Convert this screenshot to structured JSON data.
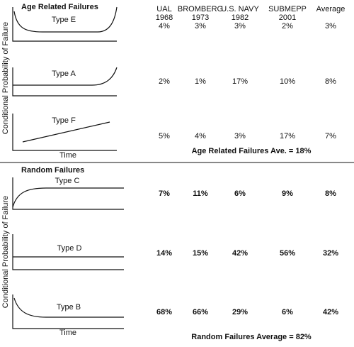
{
  "columns": [
    {
      "name": "UAL",
      "year": "1968"
    },
    {
      "name": "BROMBERG",
      "year": "1973"
    },
    {
      "name": "U.S. NAVY",
      "year": "1982"
    },
    {
      "name": "SUBMEPP",
      "year": "2001"
    },
    {
      "name": "Average"
    }
  ],
  "sections": [
    {
      "title": "Age Related Failures",
      "axis_label": "Conditional Probability of Failure",
      "time_label": "Time",
      "rows": [
        {
          "label": "Type E",
          "values": [
            "4%",
            "3%",
            "3%",
            "2%",
            "3%"
          ]
        },
        {
          "label": "Type A",
          "values": [
            "2%",
            "1%",
            "17%",
            "10%",
            "8%"
          ]
        },
        {
          "label": "Type F",
          "values": [
            "5%",
            "4%",
            "3%",
            "17%",
            "7%"
          ]
        }
      ],
      "summary": "Age Related Failures Ave. = 18%"
    },
    {
      "title": "Random Failures",
      "axis_label": "Conditional Probability of Failure",
      "time_label": "Time",
      "rows": [
        {
          "label": "Type C",
          "values": [
            "7%",
            "11%",
            "6%",
            "9%",
            "8%"
          ]
        },
        {
          "label": "Type D",
          "values": [
            "14%",
            "15%",
            "42%",
            "56%",
            "32%"
          ]
        },
        {
          "label": "Type B",
          "values": [
            "68%",
            "66%",
            "29%",
            "6%",
            "42%"
          ]
        }
      ],
      "summary": "Random Failures Average = 82%"
    }
  ]
}
